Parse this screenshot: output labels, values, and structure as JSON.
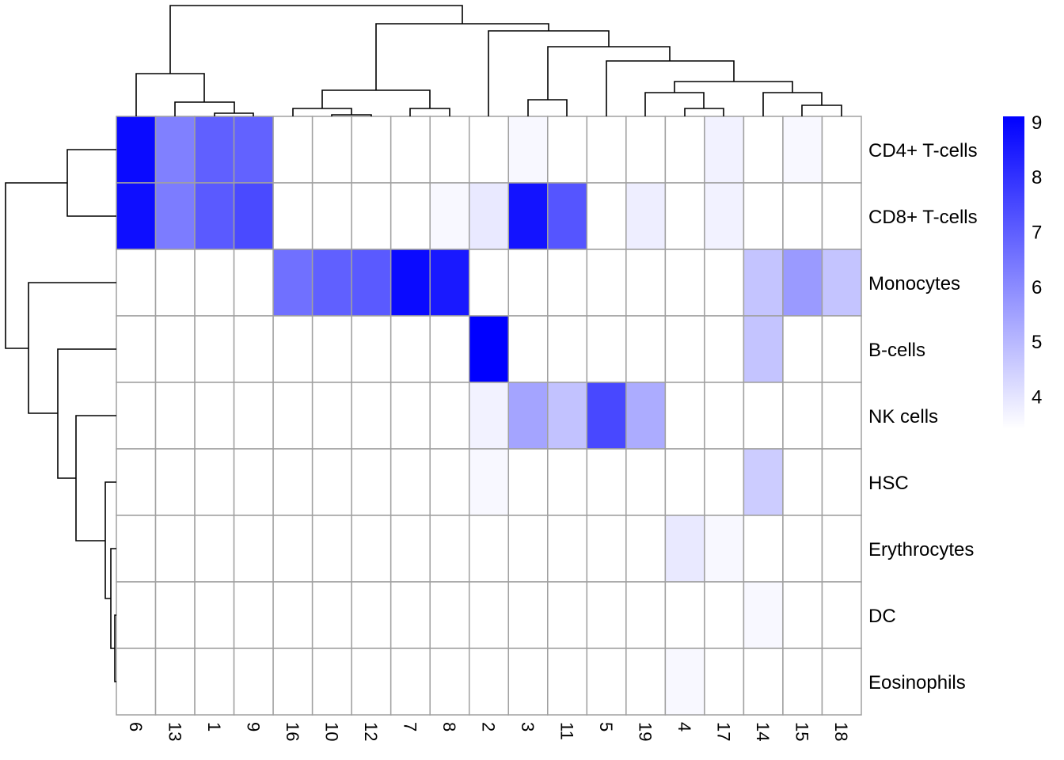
{
  "chart_data": {
    "type": "heatmap",
    "title": "",
    "columns": [
      "6",
      "13",
      "1",
      "9",
      "16",
      "10",
      "12",
      "7",
      "8",
      "2",
      "3",
      "11",
      "5",
      "19",
      "4",
      "17",
      "14",
      "15",
      "18"
    ],
    "rows": [
      "CD4+ T-cells",
      "CD8+ T-cells",
      "Monocytes",
      "B-cells",
      "NK cells",
      "HSC",
      "Erythrocytes",
      "DC",
      "Eosinophils"
    ],
    "values": [
      [
        8.88,
        6.24,
        6.96,
        6.9,
        3.4,
        3.4,
        3.4,
        3.4,
        3.4,
        3.4,
        3.56,
        3.4,
        3.4,
        3.4,
        3.4,
        3.69,
        3.4,
        3.56,
        3.4
      ],
      [
        8.79,
        6.33,
        7.09,
        7.45,
        3.4,
        3.4,
        3.4,
        3.4,
        3.56,
        3.89,
        8.68,
        7.2,
        3.4,
        3.78,
        3.4,
        3.69,
        3.4,
        3.4,
        3.4
      ],
      [
        3.4,
        3.4,
        3.4,
        3.4,
        6.6,
        6.96,
        7.09,
        8.88,
        8.55,
        3.4,
        3.4,
        3.4,
        3.4,
        3.4,
        3.4,
        3.4,
        4.72,
        5.66,
        4.72
      ],
      [
        3.4,
        3.4,
        3.4,
        3.4,
        3.4,
        3.4,
        3.4,
        3.4,
        3.4,
        9.1,
        3.4,
        3.4,
        3.4,
        3.4,
        3.4,
        3.4,
        4.72,
        3.4,
        3.4
      ],
      [
        3.4,
        3.4,
        3.4,
        3.4,
        3.4,
        3.4,
        3.4,
        3.4,
        3.4,
        3.69,
        5.43,
        4.76,
        7.49,
        5.26,
        3.4,
        3.4,
        3.4,
        3.4,
        3.4
      ],
      [
        3.4,
        3.4,
        3.4,
        3.4,
        3.4,
        3.4,
        3.4,
        3.4,
        3.4,
        3.56,
        3.4,
        3.4,
        3.4,
        3.4,
        3.4,
        3.4,
        4.54,
        3.4,
        3.4
      ],
      [
        3.4,
        3.4,
        3.4,
        3.4,
        3.4,
        3.4,
        3.4,
        3.4,
        3.4,
        3.4,
        3.4,
        3.4,
        3.4,
        3.4,
        3.89,
        3.56,
        3.4,
        3.4,
        3.4
      ],
      [
        3.4,
        3.4,
        3.4,
        3.4,
        3.4,
        3.4,
        3.4,
        3.4,
        3.4,
        3.4,
        3.4,
        3.4,
        3.4,
        3.4,
        3.4,
        3.4,
        3.56,
        3.4,
        3.4
      ],
      [
        3.4,
        3.4,
        3.4,
        3.4,
        3.4,
        3.4,
        3.4,
        3.4,
        3.4,
        3.4,
        3.4,
        3.4,
        3.4,
        3.4,
        3.56,
        3.4,
        3.4,
        3.4,
        3.4
      ]
    ],
    "color_scale": {
      "low": "#FFFFFF",
      "high": "#0000FF",
      "range": [
        3.4,
        9.1
      ],
      "ticks": [
        "9",
        "8",
        "7",
        "6",
        "5",
        "4"
      ]
    },
    "cell_border_color": "#A0A0A0",
    "row_dendrogram": true,
    "column_dendrogram": true
  }
}
